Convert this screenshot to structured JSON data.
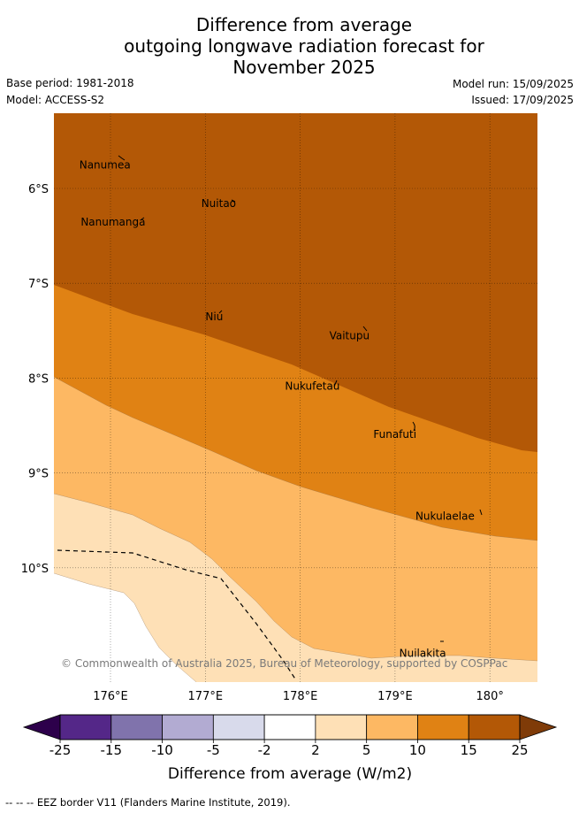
{
  "title": {
    "line1": "Difference from average",
    "line2": "outgoing longwave radiation forecast for",
    "line3": "November 2025"
  },
  "meta": {
    "base_period": "Base period: 1981-2018",
    "model": "Model: ACCESS-S2",
    "model_run": "Model run: 15/09/2025",
    "issued": "Issued: 17/09/2025"
  },
  "map": {
    "lat_labels": [
      "6°S",
      "7°S",
      "8°S",
      "9°S",
      "10°S"
    ],
    "lon_labels": [
      "176°E",
      "177°E",
      "178°E",
      "179°E",
      "180°"
    ],
    "places": [
      {
        "name": "Nanumea",
        "lon": 176.1,
        "lat": -5.68
      },
      {
        "name": "Nuitao",
        "lon": 177.33,
        "lat": -6.11
      },
      {
        "name": "Nanumanga",
        "lon": 176.32,
        "lat": -6.29
      },
      {
        "name": "Niu",
        "lon": 177.15,
        "lat": -7.28
      },
      {
        "name": "Vaitupu",
        "lon": 178.68,
        "lat": -7.48
      },
      {
        "name": "Nukufetau",
        "lon": 178.38,
        "lat": -8.03
      },
      {
        "name": "Funafuti",
        "lon": 179.2,
        "lat": -8.52
      },
      {
        "name": "Nukulaelae",
        "lon": 179.83,
        "lat": -9.38
      },
      {
        "name": "Nuilakita",
        "lon": 179.51,
        "lat": -10.78
      }
    ],
    "copyright": "© Commonwealth of Australia 2025, Bureau of Meteorology, supported by COSPPac",
    "colors": {
      "15_to_25": "#b35806",
      "10_to_15": "#e08214",
      "5_to_10": "#fdb863",
      "2_to_5": "#fee0b6",
      "-2_to_2": "#ffffff"
    }
  },
  "colorbar": {
    "ticks": [
      "-25",
      "-15",
      "-10",
      "-5",
      "-2",
      "2",
      "5",
      "10",
      "15",
      "25"
    ],
    "colors": [
      "#542788",
      "#8073ac",
      "#b2abd2",
      "#d8daeb",
      "#ffffff",
      "#fee0b6",
      "#fdb863",
      "#e08214",
      "#b35806"
    ],
    "under_color": "#2d004b",
    "over_color": "#7f3b08",
    "label": "Difference from average (W/m2)"
  },
  "footer": "--  --  -- EEZ border V11 (Flanders Marine Institute, 2019)."
}
